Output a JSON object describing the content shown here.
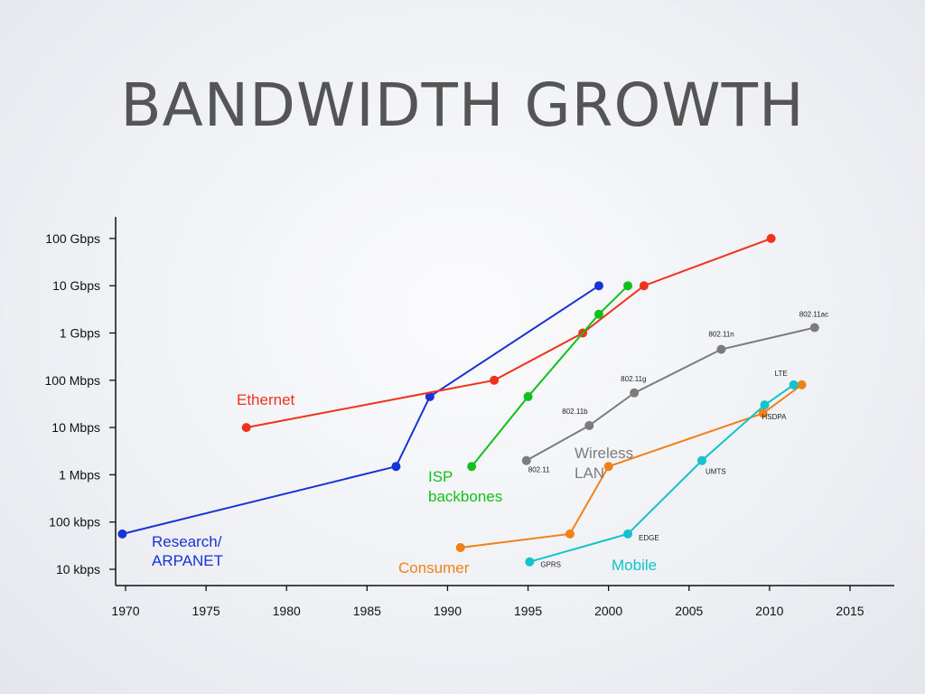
{
  "slide": {
    "title": "BANDWIDTH GROWTH"
  },
  "chart_data": {
    "type": "line",
    "title": "BANDWIDTH GROWTH",
    "xlabel": "",
    "ylabel": "",
    "xlim": [
      1969.5,
      2017.5
    ],
    "yscale": "log",
    "ylim_bps": [
      10000,
      100000000000
    ],
    "x_ticks": [
      1970,
      1975,
      1980,
      1985,
      1990,
      1995,
      2000,
      2005,
      2010,
      2015
    ],
    "y_ticks": [
      {
        "label": "10 kbps",
        "value": 10000
      },
      {
        "label": "100 kbps",
        "value": 100000
      },
      {
        "label": "1 Mbps",
        "value": 1000000
      },
      {
        "label": "10 Mbps",
        "value": 10000000
      },
      {
        "label": "100 Mbps",
        "value": 100000000
      },
      {
        "label": "1 Gbps",
        "value": 1000000000
      },
      {
        "label": "10 Gbps",
        "value": 10000000000
      },
      {
        "label": "100 Gbps",
        "value": 100000000000
      }
    ],
    "series": [
      {
        "name": "Research/ ARPANET",
        "label_lines": [
          "Research/",
          "ARPANET"
        ],
        "color": "#1733d6",
        "points": [
          {
            "x": 1969.8,
            "y": 56000
          },
          {
            "x": 1986.8,
            "y": 1500000
          },
          {
            "x": 1988.9,
            "y": 45000000
          },
          {
            "x": 1999.4,
            "y": 10000000000
          }
        ]
      },
      {
        "name": "Ethernet",
        "label_lines": [
          "Ethernet"
        ],
        "color": "#f0321a",
        "points": [
          {
            "x": 1977.5,
            "y": 10000000
          },
          {
            "x": 1992.9,
            "y": 100000000
          },
          {
            "x": 1998.4,
            "y": 1000000000
          },
          {
            "x": 2002.2,
            "y": 10000000000
          },
          {
            "x": 2010.1,
            "y": 100000000000
          }
        ]
      },
      {
        "name": "ISP backbones",
        "label_lines": [
          "ISP",
          "backbones"
        ],
        "color": "#11c01b",
        "points": [
          {
            "x": 1991.5,
            "y": 1500000
          },
          {
            "x": 1995.0,
            "y": 45000000
          },
          {
            "x": 1999.4,
            "y": 2500000000
          },
          {
            "x": 2001.2,
            "y": 10000000000
          }
        ]
      },
      {
        "name": "Wireless LAN",
        "label_lines": [
          "Wireless",
          "LAN"
        ],
        "color": "#7c7c7c",
        "points": [
          {
            "x": 1994.9,
            "y": 2000000,
            "label": "802.11"
          },
          {
            "x": 1998.8,
            "y": 11000000,
            "label": "802.11b"
          },
          {
            "x": 2001.6,
            "y": 54000000,
            "label": "802.11g"
          },
          {
            "x": 2007.0,
            "y": 450000000,
            "label": "802.11n"
          },
          {
            "x": 2012.8,
            "y": 1300000000,
            "label": "802.11ac"
          }
        ]
      },
      {
        "name": "Consumer",
        "label_lines": [
          "Consumer"
        ],
        "color": "#f28019",
        "points": [
          {
            "x": 1990.8,
            "y": 28800
          },
          {
            "x": 1997.6,
            "y": 56000
          },
          {
            "x": 2000.0,
            "y": 1500000
          },
          {
            "x": 2009.6,
            "y": 20000000
          },
          {
            "x": 2012.0,
            "y": 80000000
          }
        ]
      },
      {
        "name": "Mobile",
        "label_lines": [
          "Mobile"
        ],
        "color": "#11c3cc",
        "points": [
          {
            "x": 1995.1,
            "y": 14400,
            "label": "GPRS"
          },
          {
            "x": 2001.2,
            "y": 56000,
            "label": "EDGE"
          },
          {
            "x": 2005.8,
            "y": 2000000,
            "label": "UMTS"
          },
          {
            "x": 2009.7,
            "y": 30000000,
            "label": "HSDPA"
          },
          {
            "x": 2011.5,
            "y": 80000000,
            "label": "LTE"
          }
        ]
      }
    ]
  }
}
